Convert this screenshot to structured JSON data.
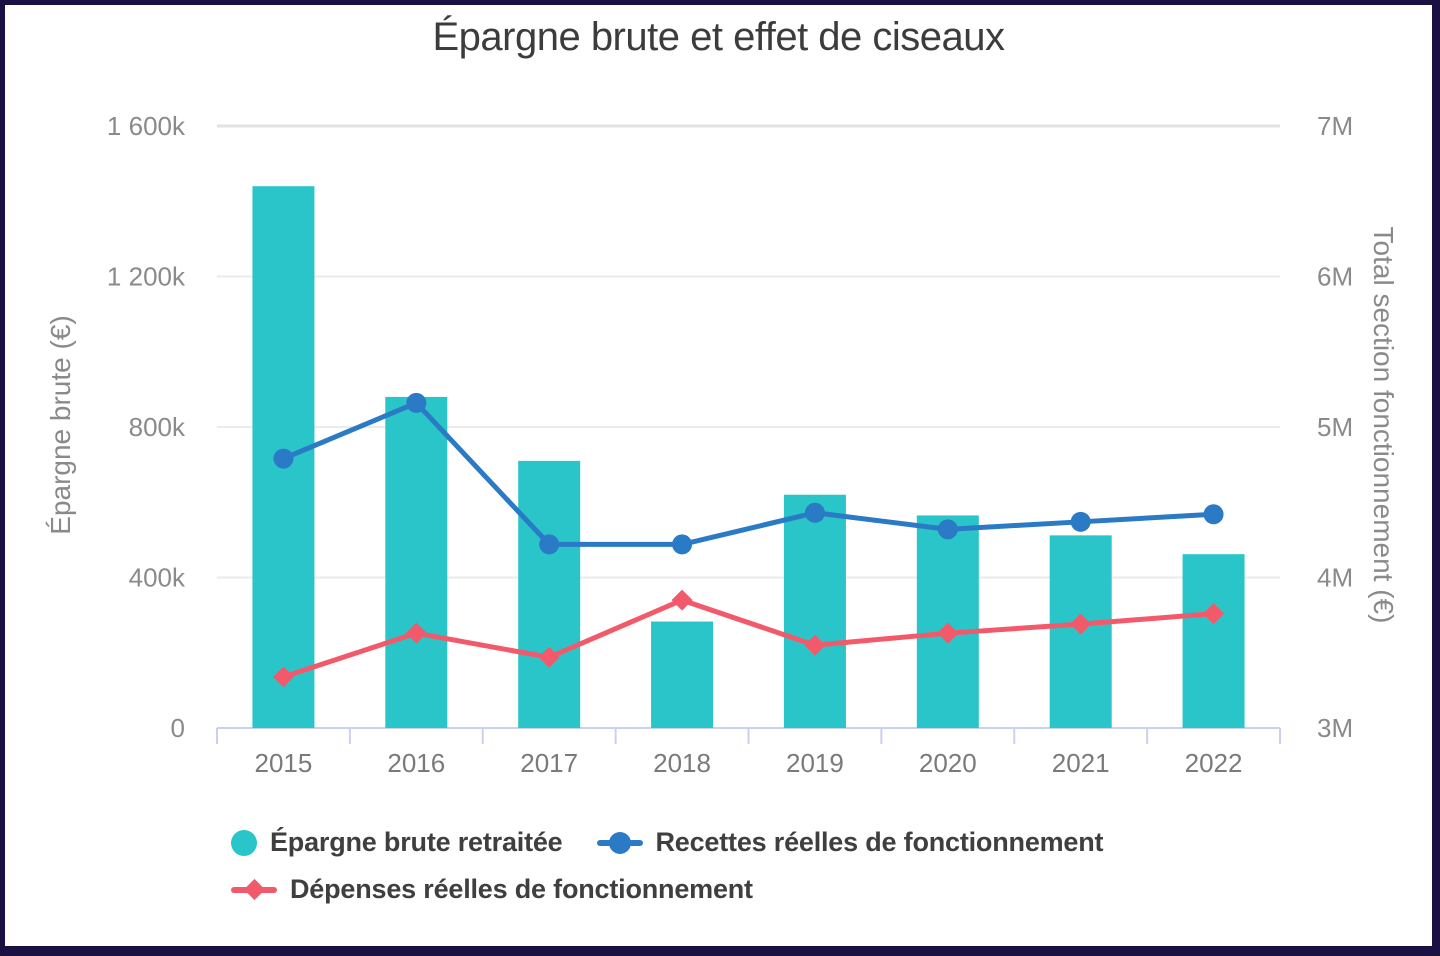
{
  "window": {
    "frame_color": "#1A1142",
    "background": "#FFFFFF"
  },
  "colors": {
    "grid_top": "#E2E2E2",
    "grid": "#EBEBEB",
    "axis_line": "#C8D2EC",
    "tick_text": "#8A8A8A",
    "year_text": "#7A7A7A",
    "title_text": "#3C3C3C",
    "legend_text": "#3F3F3F"
  },
  "chart_data": {
    "type": "combo",
    "title": "Épargne brute et effet de ciseaux",
    "categories": [
      "2015",
      "2016",
      "2017",
      "2018",
      "2019",
      "2020",
      "2021",
      "2022"
    ],
    "series": [
      {
        "name": "Épargne brute retraitée",
        "type": "bar",
        "axis": "left",
        "color": "#2AC5C9",
        "marker": "circle",
        "values_eur": [
          1440000,
          880000,
          710000,
          283000,
          620000,
          565000,
          512000,
          462000
        ]
      },
      {
        "name": "Recettes réelles de fonctionnement",
        "type": "line",
        "axis": "right",
        "color": "#2B7AC6",
        "marker": "circle",
        "values_eur": [
          4790000,
          5160000,
          4220000,
          4220000,
          4430000,
          4320000,
          4370000,
          4420000
        ]
      },
      {
        "name": "Dépenses réelles de fonctionnement",
        "type": "line",
        "axis": "right",
        "color": "#F25A6B",
        "marker": "diamond",
        "values_eur": [
          3340000,
          3630000,
          3470000,
          3850000,
          3550000,
          3630000,
          3690000,
          3760000
        ]
      }
    ],
    "left_axis": {
      "title": "Épargne brute (€)",
      "unit": "€",
      "min": 0,
      "max": 1600000,
      "tick_labels": [
        "1 600k",
        "1 200k",
        "800k",
        "400k",
        "0"
      ]
    },
    "right_axis": {
      "title": "Total section fonctionnement (€)",
      "unit": "€",
      "min": 3000000,
      "max": 7000000,
      "tick_labels": [
        "7M",
        "6M",
        "5M",
        "4M",
        "3M"
      ]
    },
    "grid": true,
    "legend_position": "bottom"
  }
}
